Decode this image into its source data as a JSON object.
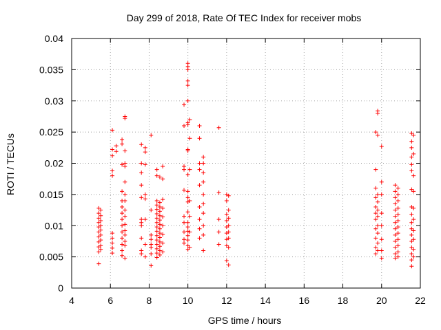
{
  "chart_data": {
    "type": "scatter",
    "title": "Day 299 of 2018, Rate Of TEC Index for receiver mobs",
    "xlabel": "GPS time / hours",
    "ylabel": "ROTI / TECUs",
    "xlim": [
      4,
      22
    ],
    "ylim": [
      0,
      0.04
    ],
    "grid": true,
    "marker": "plus",
    "color": "#ff0000",
    "x_ticks": [
      "4",
      "6",
      "8",
      "10",
      "12",
      "14",
      "16",
      "18",
      "20",
      "22"
    ],
    "y_ticks": [
      "0",
      "0.005",
      "0.01",
      "0.015",
      "0.02",
      "0.025",
      "0.03",
      "0.035",
      "0.04"
    ],
    "points": [
      [
        5.4,
        0.0128
      ],
      [
        5.4,
        0.012
      ],
      [
        5.4,
        0.0112
      ],
      [
        5.4,
        0.0105
      ],
      [
        5.4,
        0.0098
      ],
      [
        5.4,
        0.009
      ],
      [
        5.4,
        0.0082
      ],
      [
        5.4,
        0.0074
      ],
      [
        5.4,
        0.0066
      ],
      [
        5.4,
        0.0058
      ],
      [
        5.4,
        0.0039
      ],
      [
        5.5,
        0.0125
      ],
      [
        5.5,
        0.0116
      ],
      [
        5.5,
        0.0108
      ],
      [
        5.5,
        0.01
      ],
      [
        5.5,
        0.0093
      ],
      [
        5.5,
        0.0085
      ],
      [
        5.5,
        0.0077
      ],
      [
        5.5,
        0.0068
      ],
      [
        5.5,
        0.0062
      ],
      [
        6.1,
        0.0253
      ],
      [
        6.1,
        0.0222
      ],
      [
        6.1,
        0.0212
      ],
      [
        6.1,
        0.0188
      ],
      [
        6.1,
        0.018
      ],
      [
        6.1,
        0.0088
      ],
      [
        6.1,
        0.008
      ],
      [
        6.1,
        0.0072
      ],
      [
        6.1,
        0.0064
      ],
      [
        6.1,
        0.0056
      ],
      [
        6.3,
        0.0228
      ],
      [
        6.3,
        0.0219
      ],
      [
        6.6,
        0.0238
      ],
      [
        6.6,
        0.0231
      ],
      [
        6.6,
        0.0198
      ],
      [
        6.6,
        0.0155
      ],
      [
        6.6,
        0.014
      ],
      [
        6.6,
        0.013
      ],
      [
        6.6,
        0.012
      ],
      [
        6.6,
        0.011
      ],
      [
        6.6,
        0.01
      ],
      [
        6.6,
        0.009
      ],
      [
        6.6,
        0.008
      ],
      [
        6.6,
        0.007
      ],
      [
        6.6,
        0.006
      ],
      [
        6.6,
        0.0052
      ],
      [
        6.75,
        0.0275
      ],
      [
        6.75,
        0.0272
      ],
      [
        6.75,
        0.022
      ],
      [
        6.75,
        0.02
      ],
      [
        6.75,
        0.0195
      ],
      [
        6.75,
        0.017
      ],
      [
        6.75,
        0.015
      ],
      [
        6.75,
        0.014
      ],
      [
        6.75,
        0.0125
      ],
      [
        6.75,
        0.0115
      ],
      [
        6.75,
        0.0102
      ],
      [
        6.75,
        0.0092
      ],
      [
        6.75,
        0.0085
      ],
      [
        6.75,
        0.0075
      ],
      [
        6.75,
        0.0068
      ],
      [
        6.75,
        0.0048
      ],
      [
        7.6,
        0.023
      ],
      [
        7.6,
        0.02
      ],
      [
        7.6,
        0.0185
      ],
      [
        7.6,
        0.0165
      ],
      [
        7.6,
        0.0145
      ],
      [
        7.6,
        0.011
      ],
      [
        7.6,
        0.0105
      ],
      [
        7.6,
        0.01
      ],
      [
        7.6,
        0.008
      ],
      [
        7.6,
        0.006
      ],
      [
        7.6,
        0.0055
      ],
      [
        7.8,
        0.0225
      ],
      [
        7.8,
        0.0218
      ],
      [
        7.8,
        0.0198
      ],
      [
        7.8,
        0.015
      ],
      [
        7.8,
        0.0143
      ],
      [
        7.8,
        0.011
      ],
      [
        7.8,
        0.007
      ],
      [
        7.8,
        0.005
      ],
      [
        8.1,
        0.0245
      ],
      [
        8.1,
        0.0125
      ],
      [
        8.1,
        0.0085
      ],
      [
        8.1,
        0.0078
      ],
      [
        8.1,
        0.007
      ],
      [
        8.1,
        0.0065
      ],
      [
        8.1,
        0.0055
      ],
      [
        8.1,
        0.0036
      ],
      [
        8.4,
        0.019
      ],
      [
        8.4,
        0.018
      ],
      [
        8.4,
        0.014
      ],
      [
        8.4,
        0.0133
      ],
      [
        8.4,
        0.0126
      ],
      [
        8.4,
        0.0119
      ],
      [
        8.4,
        0.0112
      ],
      [
        8.4,
        0.0105
      ],
      [
        8.4,
        0.0098
      ],
      [
        8.4,
        0.0091
      ],
      [
        8.4,
        0.0084
      ],
      [
        8.4,
        0.0077
      ],
      [
        8.4,
        0.007
      ],
      [
        8.4,
        0.0063
      ],
      [
        8.4,
        0.0056
      ],
      [
        8.4,
        0.0049
      ],
      [
        8.55,
        0.0178
      ],
      [
        8.55,
        0.0137
      ],
      [
        8.55,
        0.013
      ],
      [
        8.55,
        0.0123
      ],
      [
        8.55,
        0.0116
      ],
      [
        8.55,
        0.0109
      ],
      [
        8.55,
        0.0102
      ],
      [
        8.55,
        0.0095
      ],
      [
        8.55,
        0.0088
      ],
      [
        8.55,
        0.0081
      ],
      [
        8.55,
        0.0074
      ],
      [
        8.55,
        0.0067
      ],
      [
        8.55,
        0.006
      ],
      [
        8.55,
        0.0053
      ],
      [
        8.7,
        0.0195
      ],
      [
        8.7,
        0.0175
      ],
      [
        8.7,
        0.0142
      ],
      [
        8.7,
        0.0128
      ],
      [
        8.7,
        0.0114
      ],
      [
        8.7,
        0.01
      ],
      [
        8.7,
        0.0086
      ],
      [
        8.7,
        0.0072
      ],
      [
        8.7,
        0.0058
      ],
      [
        9.8,
        0.0294
      ],
      [
        9.8,
        0.026
      ],
      [
        9.8,
        0.0195
      ],
      [
        9.8,
        0.019
      ],
      [
        9.8,
        0.0157
      ],
      [
        9.8,
        0.0115
      ],
      [
        9.8,
        0.0105
      ],
      [
        9.8,
        0.009
      ],
      [
        9.8,
        0.0078
      ],
      [
        9.8,
        0.0072
      ],
      [
        10.0,
        0.036
      ],
      [
        10.0,
        0.0355
      ],
      [
        10.0,
        0.035
      ],
      [
        10.0,
        0.0332
      ],
      [
        10.0,
        0.0325
      ],
      [
        10.0,
        0.03
      ],
      [
        10.0,
        0.0265
      ],
      [
        10.0,
        0.0262
      ],
      [
        10.0,
        0.0222
      ],
      [
        10.0,
        0.022
      ],
      [
        10.0,
        0.0182
      ],
      [
        10.0,
        0.0155
      ],
      [
        10.0,
        0.0145
      ],
      [
        10.0,
        0.0138
      ],
      [
        10.0,
        0.0122
      ],
      [
        10.0,
        0.0105
      ],
      [
        10.0,
        0.0098
      ],
      [
        10.0,
        0.0091
      ],
      [
        10.0,
        0.0084
      ],
      [
        10.0,
        0.0077
      ],
      [
        10.0,
        0.0068
      ],
      [
        10.0,
        0.0062
      ],
      [
        10.1,
        0.027
      ],
      [
        10.1,
        0.024
      ],
      [
        10.1,
        0.019
      ],
      [
        10.1,
        0.014
      ],
      [
        10.1,
        0.0115
      ],
      [
        10.1,
        0.009
      ],
      [
        10.1,
        0.0065
      ],
      [
        10.6,
        0.026
      ],
      [
        10.6,
        0.024
      ],
      [
        10.6,
        0.02
      ],
      [
        10.6,
        0.019
      ],
      [
        10.6,
        0.0165
      ],
      [
        10.6,
        0.013
      ],
      [
        10.6,
        0.011
      ],
      [
        10.6,
        0.0095
      ],
      [
        10.6,
        0.008
      ],
      [
        10.8,
        0.021
      ],
      [
        10.8,
        0.02
      ],
      [
        10.8,
        0.0185
      ],
      [
        10.8,
        0.017
      ],
      [
        10.8,
        0.015
      ],
      [
        10.8,
        0.0135
      ],
      [
        10.8,
        0.012
      ],
      [
        10.8,
        0.01
      ],
      [
        10.8,
        0.0085
      ],
      [
        10.8,
        0.006
      ],
      [
        11.6,
        0.0257
      ],
      [
        11.6,
        0.0153
      ],
      [
        11.6,
        0.011
      ],
      [
        11.6,
        0.009
      ],
      [
        11.6,
        0.007
      ],
      [
        12.0,
        0.015
      ],
      [
        12.0,
        0.014
      ],
      [
        12.0,
        0.0118
      ],
      [
        12.0,
        0.0108
      ],
      [
        12.0,
        0.0098
      ],
      [
        12.0,
        0.0088
      ],
      [
        12.0,
        0.0078
      ],
      [
        12.0,
        0.0068
      ],
      [
        12.0,
        0.0044
      ],
      [
        12.1,
        0.0148
      ],
      [
        12.1,
        0.0125
      ],
      [
        12.1,
        0.0112
      ],
      [
        12.1,
        0.01
      ],
      [
        12.1,
        0.009
      ],
      [
        12.1,
        0.008
      ],
      [
        12.1,
        0.0065
      ],
      [
        12.1,
        0.0037
      ],
      [
        19.7,
        0.025
      ],
      [
        19.7,
        0.019
      ],
      [
        19.7,
        0.016
      ],
      [
        19.7,
        0.0145
      ],
      [
        19.7,
        0.013
      ],
      [
        19.7,
        0.012
      ],
      [
        19.7,
        0.011
      ],
      [
        19.7,
        0.0095
      ],
      [
        19.7,
        0.008
      ],
      [
        19.7,
        0.0065
      ],
      [
        19.7,
        0.0055
      ],
      [
        19.8,
        0.0284
      ],
      [
        19.8,
        0.028
      ],
      [
        19.8,
        0.0245
      ],
      [
        19.8,
        0.015
      ],
      [
        19.8,
        0.0138
      ],
      [
        19.8,
        0.0125
      ],
      [
        19.8,
        0.0115
      ],
      [
        19.8,
        0.01
      ],
      [
        19.8,
        0.0088
      ],
      [
        19.8,
        0.0072
      ],
      [
        19.8,
        0.006
      ],
      [
        20.0,
        0.0227
      ],
      [
        20.0,
        0.017
      ],
      [
        20.0,
        0.015
      ],
      [
        20.0,
        0.012
      ],
      [
        20.0,
        0.01
      ],
      [
        20.0,
        0.0078
      ],
      [
        20.0,
        0.006
      ],
      [
        20.0,
        0.0048
      ],
      [
        20.7,
        0.0165
      ],
      [
        20.7,
        0.0155
      ],
      [
        20.7,
        0.0145
      ],
      [
        20.7,
        0.0135
      ],
      [
        20.7,
        0.0125
      ],
      [
        20.7,
        0.0115
      ],
      [
        20.7,
        0.0105
      ],
      [
        20.7,
        0.0095
      ],
      [
        20.7,
        0.0085
      ],
      [
        20.7,
        0.0075
      ],
      [
        20.7,
        0.0065
      ],
      [
        20.7,
        0.0055
      ],
      [
        20.7,
        0.0048
      ],
      [
        20.85,
        0.016
      ],
      [
        20.85,
        0.015
      ],
      [
        20.85,
        0.014
      ],
      [
        20.85,
        0.0128
      ],
      [
        20.85,
        0.0118
      ],
      [
        20.85,
        0.0108
      ],
      [
        20.85,
        0.0098
      ],
      [
        20.85,
        0.0088
      ],
      [
        20.85,
        0.0078
      ],
      [
        20.85,
        0.0068
      ],
      [
        20.85,
        0.0058
      ],
      [
        20.85,
        0.005
      ],
      [
        21.55,
        0.0248
      ],
      [
        21.55,
        0.0235
      ],
      [
        21.55,
        0.0225
      ],
      [
        21.55,
        0.021
      ],
      [
        21.55,
        0.0198
      ],
      [
        21.55,
        0.0188
      ],
      [
        21.55,
        0.0158
      ],
      [
        21.55,
        0.013
      ],
      [
        21.55,
        0.0118
      ],
      [
        21.55,
        0.0105
      ],
      [
        21.55,
        0.0095
      ],
      [
        21.55,
        0.0085
      ],
      [
        21.55,
        0.0075
      ],
      [
        21.55,
        0.0065
      ],
      [
        21.55,
        0.0055
      ],
      [
        21.55,
        0.0045
      ],
      [
        21.55,
        0.0035
      ],
      [
        21.65,
        0.0245
      ],
      [
        21.65,
        0.0215
      ],
      [
        21.65,
        0.018
      ],
      [
        21.65,
        0.0155
      ],
      [
        21.65,
        0.0128
      ],
      [
        21.65,
        0.011
      ],
      [
        21.65,
        0.0092
      ],
      [
        21.65,
        0.0078
      ],
      [
        21.65,
        0.0062
      ],
      [
        21.65,
        0.005
      ]
    ]
  }
}
